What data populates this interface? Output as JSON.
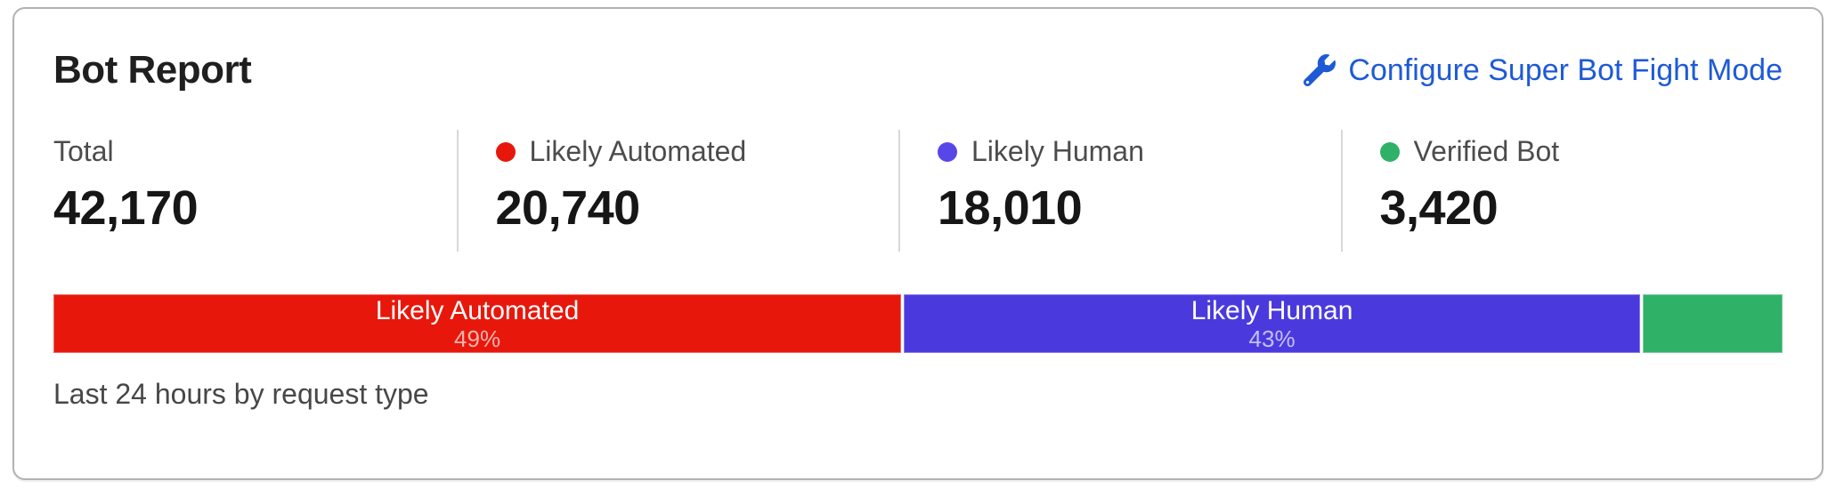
{
  "card": {
    "title": "Bot Report",
    "configure_link": {
      "label": "Configure Super Bot Fight Mode",
      "icon": "wrench-icon",
      "color": "#1e5ad6"
    },
    "stats": [
      {
        "label": "Total",
        "value": "42,170",
        "dot_color": null
      },
      {
        "label": "Likely Automated",
        "value": "20,740",
        "dot_color": "#e8170b"
      },
      {
        "label": "Likely Human",
        "value": "18,010",
        "dot_color": "#5847e8"
      },
      {
        "label": "Verified Bot",
        "value": "3,420",
        "dot_color": "#2fb267"
      }
    ],
    "footer": "Last 24 hours by request type"
  },
  "chart_data": {
    "type": "bar",
    "stacked": true,
    "orientation": "horizontal",
    "title": "Bot Report",
    "subtitle": "Last 24 hours by request type",
    "total": 42170,
    "segments": [
      {
        "label": "Likely Automated",
        "value": 20740,
        "percent_label": "49%",
        "percent": 49.2,
        "color": "#e8170b",
        "show_label": true
      },
      {
        "label": "Likely Human",
        "value": 18010,
        "percent_label": "43%",
        "percent": 42.7,
        "color": "#4a3ade",
        "show_label": true
      },
      {
        "label": "Verified Bot",
        "value": 3420,
        "percent_label": "8%",
        "percent": 8.1,
        "color": "#2fb267",
        "show_label": false
      }
    ]
  },
  "colors": {
    "card_border": "#b2b2b2",
    "divider": "#d8d8d8",
    "title_text": "#1f1f1f",
    "label_text": "#4c4c4c",
    "value_text": "#161616",
    "footer_text": "#474747",
    "link_blue": "#1e5ad6",
    "bar_red": "#e8170b",
    "bar_indigo": "#4a3ade",
    "bar_green": "#2fb267"
  }
}
